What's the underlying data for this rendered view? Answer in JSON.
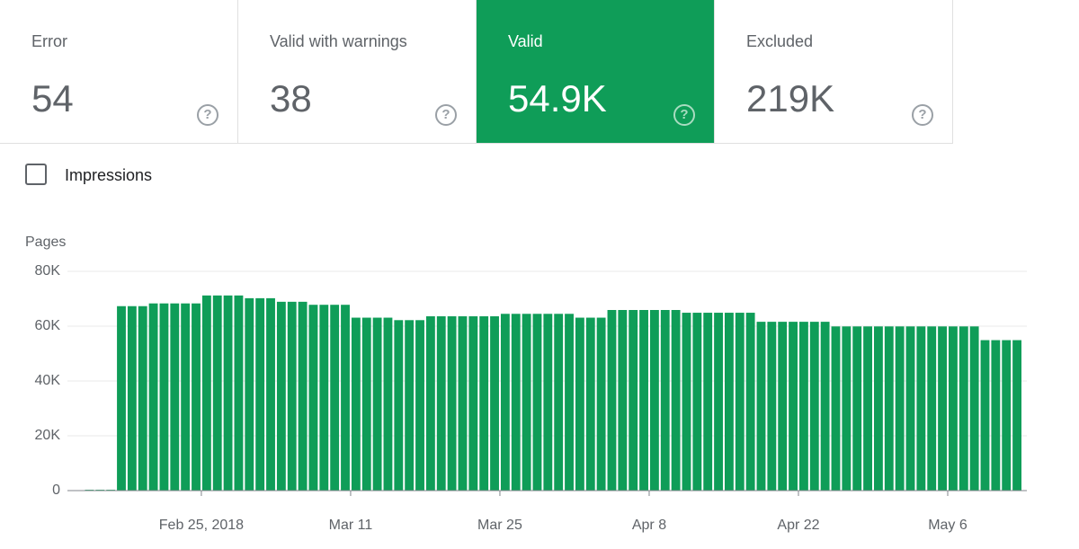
{
  "cards": [
    {
      "label": "Error",
      "value": "54"
    },
    {
      "label": "Valid with warnings",
      "value": "38"
    },
    {
      "label": "Valid",
      "value": "54.9K"
    },
    {
      "label": "Excluded",
      "value": "219K"
    }
  ],
  "toggle": {
    "label": "Impressions"
  },
  "chart_data": {
    "type": "bar",
    "y_label": "Pages",
    "color": "#0f9d58",
    "grid": true,
    "categories": [
      null,
      null,
      null,
      null,
      null,
      null,
      null,
      null,
      null,
      null,
      null,
      "Feb 25, 2018",
      null,
      null,
      null,
      null,
      null,
      null,
      null,
      null,
      null,
      null,
      null,
      null,
      null,
      "Mar 11",
      null,
      null,
      null,
      null,
      null,
      null,
      null,
      null,
      null,
      null,
      null,
      null,
      null,
      "Mar 25",
      null,
      null,
      null,
      null,
      null,
      null,
      null,
      null,
      null,
      null,
      null,
      null,
      null,
      "Apr 8",
      null,
      null,
      null,
      null,
      null,
      null,
      null,
      null,
      null,
      null,
      null,
      null,
      null,
      "Apr 22",
      null,
      null,
      null,
      null,
      null,
      null,
      null,
      null,
      null,
      null,
      null,
      null,
      null,
      "May 6",
      null,
      null,
      null,
      null,
      null,
      null
    ],
    "values": [
      300,
      300,
      300,
      67300,
      67300,
      67300,
      68300,
      68300,
      68300,
      68300,
      68300,
      71200,
      71200,
      71200,
      71200,
      70200,
      70200,
      70200,
      68900,
      68900,
      68900,
      67800,
      67800,
      67800,
      67800,
      63100,
      63100,
      63100,
      63100,
      62200,
      62200,
      62200,
      63600,
      63600,
      63600,
      63600,
      63600,
      63600,
      63600,
      64500,
      64500,
      64500,
      64500,
      64500,
      64500,
      64500,
      63100,
      63100,
      63100,
      65900,
      65900,
      65900,
      65900,
      65900,
      65900,
      65900,
      64900,
      64900,
      64900,
      64900,
      64900,
      64900,
      64900,
      61600,
      61600,
      61600,
      61600,
      61600,
      61600,
      61600,
      59900,
      59900,
      59900,
      59900,
      59900,
      59900,
      59900,
      59900,
      59900,
      59900,
      59900,
      59900,
      59900,
      59900,
      54900,
      54900,
      54900,
      54900
    ],
    "ylim": [
      0,
      80000
    ],
    "yticks": [
      {
        "value": 0,
        "label": "0"
      },
      {
        "value": 20000,
        "label": "20K"
      },
      {
        "value": 40000,
        "label": "40K"
      },
      {
        "value": 60000,
        "label": "60K"
      },
      {
        "value": 80000,
        "label": "80K"
      }
    ]
  }
}
